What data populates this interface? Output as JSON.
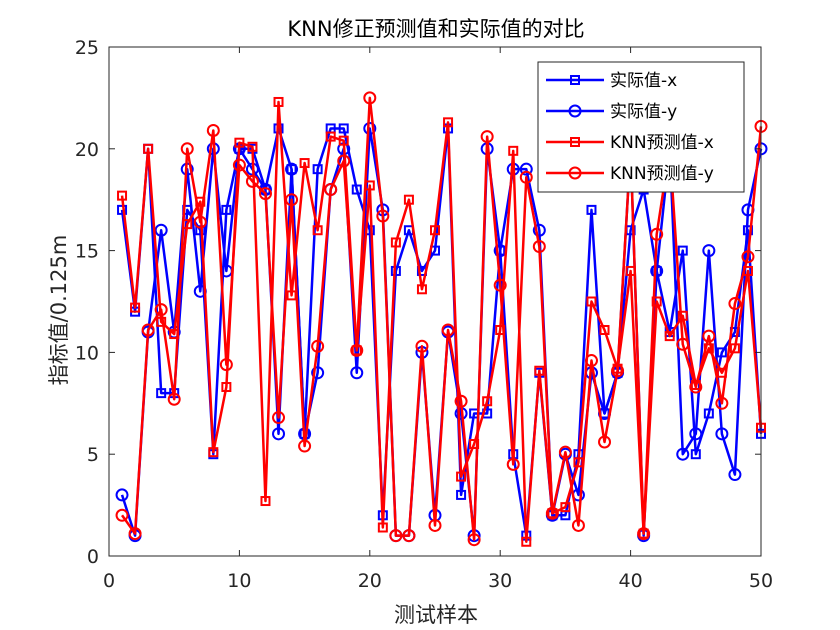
{
  "chart_data": {
    "type": "line",
    "title": "KNN修正预测值和实际值的对比",
    "xlabel": "测试样本",
    "ylabel": "指标值/0.125m",
    "xlim": [
      0,
      50
    ],
    "ylim": [
      0,
      25
    ],
    "xticks": [
      0,
      10,
      20,
      30,
      40,
      50
    ],
    "yticks": [
      0,
      5,
      10,
      15,
      20,
      25
    ],
    "grid": false,
    "legend_position": "top-right",
    "x": [
      1,
      2,
      3,
      4,
      5,
      6,
      7,
      8,
      9,
      10,
      11,
      12,
      13,
      14,
      15,
      16,
      17,
      18,
      19,
      20,
      21,
      22,
      23,
      24,
      25,
      26,
      27,
      28,
      29,
      30,
      31,
      32,
      33,
      34,
      35,
      36,
      37,
      38,
      39,
      40,
      41,
      42,
      43,
      44,
      45,
      46,
      47,
      48,
      49,
      50
    ],
    "series": [
      {
        "name": "实际值-x",
        "color": "#0000ff",
        "marker": "square",
        "values": [
          17,
          12,
          20,
          8,
          8,
          17,
          16,
          5,
          17,
          20,
          20,
          18,
          21,
          19,
          6,
          19,
          21,
          21,
          18,
          16,
          2,
          14,
          16,
          14,
          15,
          21,
          3,
          7,
          7,
          15,
          5,
          1,
          9,
          2,
          2,
          5,
          17,
          7,
          9,
          16,
          18,
          14,
          11,
          15,
          5,
          7,
          10,
          11,
          16,
          6
        ]
      },
      {
        "name": "实际值-y",
        "color": "#0000ff",
        "marker": "circle",
        "values": [
          3,
          1,
          11,
          16,
          11,
          19,
          13,
          20,
          14,
          20,
          19,
          18,
          6,
          19,
          6,
          9,
          18,
          20,
          9,
          21,
          17,
          1,
          1,
          10,
          2,
          11,
          7,
          1,
          20,
          15,
          19,
          19,
          16,
          2,
          5,
          3,
          9,
          7,
          9,
          20,
          1,
          14,
          20,
          5,
          6,
          15,
          6,
          4,
          17,
          20
        ]
      },
      {
        "name": "KNN预测值-x",
        "color": "#ff0000",
        "marker": "square",
        "values": [
          17.7,
          12.2,
          20,
          11.5,
          10.9,
          16.3,
          17.4,
          5.1,
          8.3,
          20.3,
          20.1,
          2.7,
          22.3,
          12.8,
          19.3,
          16,
          20.6,
          20.4,
          10.1,
          18.2,
          1.4,
          15.4,
          17.5,
          13.1,
          16,
          21.3,
          3.9,
          5.5,
          7.6,
          11.1,
          19.9,
          0.7,
          9.1,
          2.1,
          2.4,
          4.6,
          12.5,
          11.1,
          9.2,
          14,
          1.1,
          12.5,
          10.8,
          11.8,
          8.4,
          10.2,
          9,
          10.2,
          14,
          6.3
        ]
      },
      {
        "name": "KNN预测值-y",
        "color": "#ff0000",
        "marker": "circle",
        "values": [
          2,
          1.1,
          11.1,
          12.1,
          7.7,
          20,
          16.4,
          20.9,
          9.4,
          19.2,
          18.4,
          17.8,
          6.8,
          17.5,
          5.4,
          10.3,
          18,
          19.4,
          10.1,
          22.5,
          16.7,
          1,
          1,
          10.3,
          1.5,
          11.1,
          7.6,
          0.8,
          20.6,
          13.3,
          4.5,
          18.6,
          15.2,
          2.1,
          5.1,
          1.5,
          9.6,
          5.6,
          9.1,
          20,
          1.1,
          15.8,
          20,
          10.4,
          8.3,
          10.8,
          7.5,
          12.4,
          14.7,
          21.1
        ]
      }
    ]
  }
}
